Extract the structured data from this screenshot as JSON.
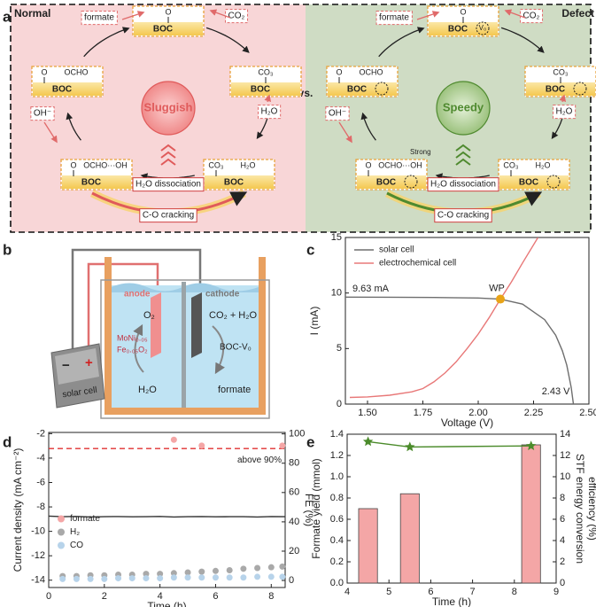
{
  "panel_labels": [
    "a",
    "b",
    "c",
    "d",
    "e"
  ],
  "panel_a": {
    "vs": "vs.",
    "cycles": [
      {
        "title": "Normal",
        "state": "Sluggish",
        "color": "#e05a5a",
        "boxes": [
          {
            "top": [
              "O"
            ],
            "bottom": "BOC"
          },
          {
            "top": [
              "CO₃"
            ],
            "bottom": "BOC"
          },
          {
            "top": [
              "CO₃",
              "H₂O"
            ],
            "bottom": "BOC"
          },
          {
            "top": [
              "O",
              "OCHO···OH"
            ],
            "bottom": "BOC"
          },
          {
            "top": [
              "O",
              "OCHO"
            ],
            "bottom": "BOC"
          }
        ],
        "species": [
          "formate",
          "CO₂",
          "H₂O",
          "OH⁻"
        ],
        "steps": [
          "H₂O dissociation",
          "C-O cracking"
        ]
      },
      {
        "title": "Defect",
        "state": "Speedy",
        "color": "#4f8a2f",
        "vacancy": "V₀",
        "note": "Strong",
        "boxes": [
          {
            "top": [
              "O"
            ],
            "bottom": "BOC"
          },
          {
            "top": [
              "CO₃"
            ],
            "bottom": "BOC"
          },
          {
            "top": [
              "CO₃",
              "H₂O"
            ],
            "bottom": "BOC"
          },
          {
            "top": [
              "O",
              "OCHO···OH"
            ],
            "bottom": "BOC"
          },
          {
            "top": [
              "O",
              "OCHO"
            ],
            "bottom": "BOC"
          }
        ],
        "species": [
          "formate",
          "CO₂",
          "H₂O",
          "OH⁻"
        ],
        "steps": [
          "H₂O dissociation",
          "C-O cracking"
        ]
      }
    ]
  },
  "panel_b": {
    "anode": "anode",
    "cathode": "cathode",
    "anode_product": "O₂",
    "cathode_reactants": "CO₂ + H₂O",
    "anode_catalyst": [
      "MoNi₀.₀₅",
      "Fe₀.₀₅O₂"
    ],
    "cathode_catalyst": "BOC-V₀",
    "anode_reactant": "H₂O",
    "cathode_product": "formate",
    "source": "solar cell",
    "minus": "−",
    "plus": "+"
  },
  "chart_data": [
    {
      "type": "line",
      "xlabel": "Voltage (V)",
      "ylabel": "I (mA)",
      "legend": "upper left",
      "xlim": [
        1.4,
        2.5
      ],
      "ylim": [
        0,
        15
      ],
      "xticks": [
        {
          "value": 1.5,
          "label": "1.50"
        },
        {
          "value": 1.75,
          "label": "1.75"
        },
        {
          "value": 2,
          "label": "2.00"
        },
        {
          "value": 2.25,
          "label": "2.25"
        },
        {
          "value": 2.5,
          "label": "2.50"
        }
      ],
      "yticks": [
        0,
        5,
        10,
        15
      ],
      "series": [
        {
          "name": "solar cell",
          "color": "#6e6e6e",
          "x": [
            1.4,
            1.6,
            1.8,
            2.0,
            2.1,
            2.2,
            2.3,
            2.35,
            2.38,
            2.4,
            2.42,
            2.43
          ],
          "values": [
            9.63,
            9.62,
            9.6,
            9.55,
            9.45,
            9.0,
            7.6,
            6.2,
            4.8,
            3.5,
            1.5,
            0
          ]
        },
        {
          "name": "electrochemical cell",
          "color": "#e87878",
          "x": [
            1.42,
            1.5,
            1.6,
            1.7,
            1.75,
            1.8,
            1.85,
            1.9,
            1.95,
            2.0,
            2.05,
            2.1,
            2.15,
            2.2,
            2.27
          ],
          "values": [
            0.6,
            0.65,
            0.8,
            1.1,
            1.4,
            2.0,
            2.8,
            3.8,
            5.0,
            6.3,
            7.8,
            9.45,
            11.0,
            12.7,
            15
          ]
        }
      ],
      "working_point": {
        "label": "WP",
        "x": 2.1,
        "y": 9.45,
        "color": "#e8a317"
      },
      "annotations": [
        {
          "text": "9.63 mA",
          "y": 9.63
        },
        {
          "text": "2.43 V",
          "x": 2.43
        }
      ]
    },
    {
      "type": "combo",
      "xlabel": "Time (h)",
      "ylabel": "Current density (mA cm⁻²)",
      "y2label": "FE (%)",
      "legend": "center left",
      "xlim": [
        0,
        8.5
      ],
      "ylim": [
        -14.6,
        -1.9
      ],
      "y2lim": [
        -4.8,
        101
      ],
      "xticks": [
        0,
        2,
        4,
        6,
        8
      ],
      "yticks": [
        -14,
        -12,
        -10,
        -8,
        -6,
        -4,
        -2
      ],
      "y2ticks": [
        0,
        20,
        40,
        60,
        80,
        100
      ],
      "series": [
        {
          "style": "line",
          "color": "#333333",
          "x": [
            0,
            0.5,
            1,
            1.5,
            2,
            2.5,
            3,
            3.5,
            4,
            4.5,
            5,
            5.5,
            6,
            6.5,
            7,
            7.5,
            8,
            8.5
          ],
          "values": [
            -8.75,
            -8.8,
            -8.78,
            -8.82,
            -8.8,
            -8.79,
            -8.81,
            -8.8,
            -8.78,
            -8.82,
            -8.8,
            -8.79,
            -8.81,
            -8.8,
            -8.8,
            -8.82,
            -8.79,
            -8.8
          ]
        },
        {
          "name": "formate",
          "style": "scatter",
          "axis": "y2",
          "color": "#f4a6a6",
          "x": [
            4.5,
            5.5,
            8.4
          ],
          "values": [
            96,
            92,
            92
          ]
        },
        {
          "name": "H₂",
          "style": "scatter",
          "axis": "y2",
          "color": "#a9a9a9",
          "x": [
            0.5,
            1,
            1.5,
            2,
            2.5,
            3,
            3.5,
            4,
            4.5,
            5,
            5.5,
            6,
            6.5,
            7,
            7.5,
            8,
            8.4
          ],
          "values": [
            3,
            3,
            3.5,
            3.5,
            4,
            4,
            4.5,
            4.5,
            5,
            5.5,
            6,
            6.5,
            7,
            8,
            8.5,
            9,
            9.5
          ]
        },
        {
          "name": "CO",
          "style": "scatter",
          "axis": "y2",
          "color": "#b7d3ea",
          "x": [
            0.5,
            1,
            1.5,
            2,
            2.5,
            3,
            3.5,
            4,
            4.5,
            5,
            5.5,
            6,
            6.5,
            7,
            7.5,
            8,
            8.4
          ],
          "values": [
            1,
            1,
            1,
            1,
            1.5,
            1.5,
            1.5,
            1.5,
            2,
            2,
            2,
            2,
            2,
            2,
            2.5,
            2.5,
            2.5
          ]
        }
      ],
      "reference_line": {
        "value": 90,
        "axis": "y2",
        "label": "above 90%",
        "color": "#e03030"
      }
    },
    {
      "type": "bar",
      "xlabel": "Time (h)",
      "ylabel": "Formate yield (mmol)",
      "y2label": [
        "STF energy conversion",
        "efficiency (%)"
      ],
      "xlim": [
        4,
        9
      ],
      "ylim": [
        0,
        1.4
      ],
      "y2lim": [
        0,
        14
      ],
      "xticks": [
        4,
        5,
        6,
        7,
        8,
        9
      ],
      "yticks": [
        {
          "value": 0,
          "label": "0.0"
        },
        0.2,
        0.4,
        0.6,
        0.8,
        {
          "value": 1,
          "label": "1.0"
        },
        1.2,
        1.4
      ],
      "y2ticks": [
        0,
        2,
        4,
        6,
        8,
        10,
        12,
        14
      ],
      "x": [
        4.5,
        5.5,
        8.4
      ],
      "series": [
        {
          "style": "bar",
          "color": "#f4a6a6",
          "values": [
            0.7,
            0.84,
            1.3
          ]
        },
        {
          "style": "line",
          "marker": "star",
          "axis": "y2",
          "color": "#4b8b2b",
          "values": [
            13.3,
            12.8,
            12.9
          ]
        }
      ]
    }
  ]
}
